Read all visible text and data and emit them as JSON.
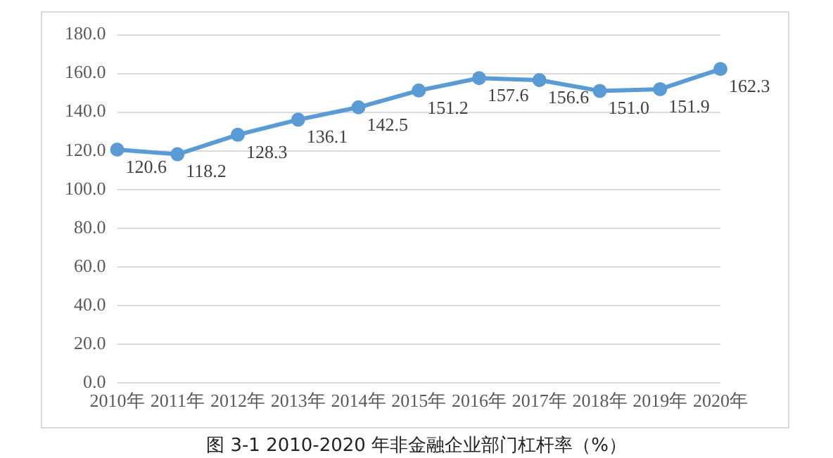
{
  "chart_data": {
    "type": "line",
    "title": "图 3-1 2010-2020 年非金融企业部门杠杆率（%）",
    "categories": [
      "2010年",
      "2011年",
      "2012年",
      "2013年",
      "2014年",
      "2015年",
      "2016年",
      "2017年",
      "2018年",
      "2019年",
      "2020年"
    ],
    "series": [
      {
        "color": "#5b9bd5",
        "values": [
          120.6,
          118.2,
          128.3,
          136.1,
          142.5,
          151.2,
          157.6,
          156.6,
          151.0,
          151.9,
          162.3
        ],
        "value_labels": [
          "120.6",
          "118.2",
          "128.3",
          "136.1",
          "142.5",
          "151.2",
          "157.6",
          "156.6",
          "151.0",
          "151.9",
          "162.3"
        ]
      }
    ],
    "ylim": [
      0,
      180
    ],
    "yticks": [
      {
        "value": 0,
        "label": "0.0"
      },
      {
        "value": 20,
        "label": "20.0"
      },
      {
        "value": 40,
        "label": "40.0"
      },
      {
        "value": 60,
        "label": "60.0"
      },
      {
        "value": 80,
        "label": "80.0"
      },
      {
        "value": 100,
        "label": "100.0"
      },
      {
        "value": 120,
        "label": "120.0"
      },
      {
        "value": 140,
        "label": "140.0"
      },
      {
        "value": 160,
        "label": "160.0"
      },
      {
        "value": 180,
        "label": "180.0"
      }
    ],
    "grid": "y",
    "legend": false,
    "marker": "circle",
    "line_style": "solid"
  }
}
